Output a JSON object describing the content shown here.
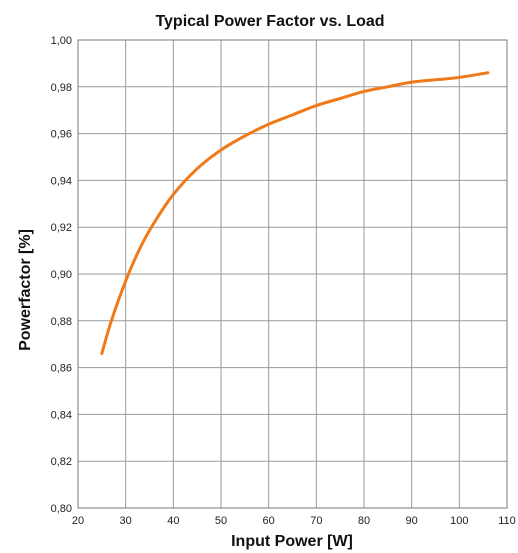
{
  "chart_data": {
    "type": "line",
    "title": "Typical Power Factor vs. Load",
    "xlabel": "Input Power [W]",
    "ylabel": "Powerfactor [%]",
    "xlim": [
      20,
      110
    ],
    "ylim": [
      0.8,
      1.0
    ],
    "x_ticks": [
      20,
      30,
      40,
      50,
      60,
      70,
      80,
      90,
      100,
      110
    ],
    "y_ticks": [
      0.8,
      0.82,
      0.84,
      0.86,
      0.88,
      0.9,
      0.92,
      0.94,
      0.96,
      0.98,
      1.0
    ],
    "x_tick_labels": [
      "20",
      "30",
      "40",
      "50",
      "60",
      "70",
      "80",
      "90",
      "100",
      "110"
    ],
    "y_tick_labels": [
      "0,80",
      "0,82",
      "0,84",
      "0,86",
      "0,88",
      "0,90",
      "0,92",
      "0,94",
      "0,96",
      "0,98",
      "1,00"
    ],
    "grid": true,
    "legend": "none",
    "series_color": "#f07a1a",
    "grid_color": "#9a9a9a",
    "series": [
      {
        "x": [
          25,
          27,
          30,
          33,
          36,
          40,
          45,
          50,
          55,
          60,
          65,
          70,
          75,
          80,
          85,
          90,
          95,
          100,
          106
        ],
        "values": [
          0.866,
          0.88,
          0.897,
          0.911,
          0.922,
          0.934,
          0.945,
          0.953,
          0.959,
          0.964,
          0.968,
          0.972,
          0.975,
          0.978,
          0.98,
          0.982,
          0.983,
          0.984,
          0.986
        ]
      }
    ]
  }
}
